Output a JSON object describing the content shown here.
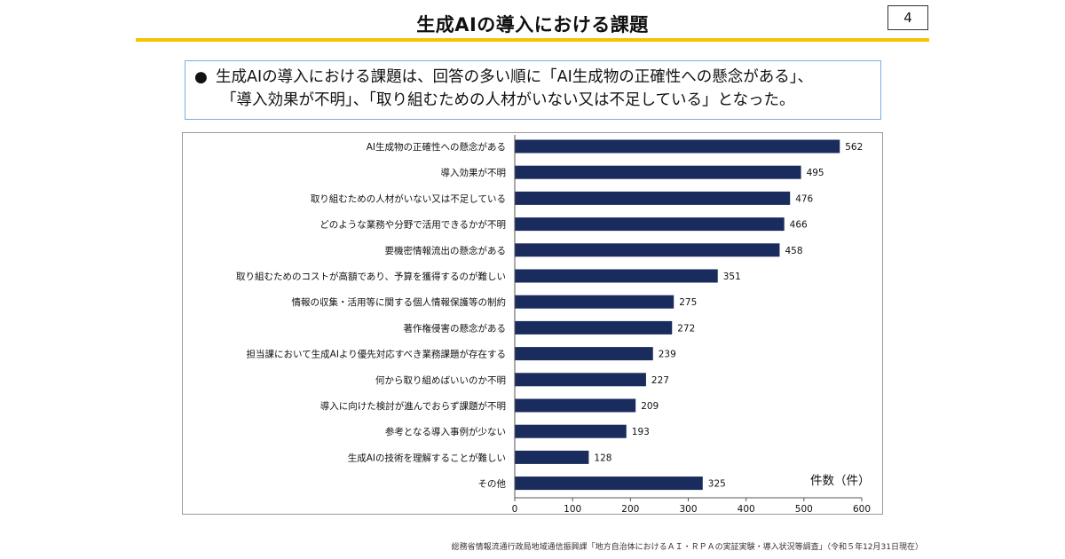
{
  "slide": {
    "title": "生成AIの導入における課題",
    "page_number": "4",
    "summary_bullet": "●",
    "summary_line1": "生成AIの導入における課題は、回答の多い順に「AI生成物の正確性への懸念がある」、",
    "summary_line2": "「導入効果が不明」、「取り組むための人材がいない又は不足している」となった。",
    "source_note": "総務省情報流通行政局地域通信振興課「地方自治体におけるＡＩ・ＲＰＡの実証実験・導入状況等調査」（令和５年12月31日現在）",
    "colors": {
      "accent_rule": "#f5c400",
      "box_border": "#7aaede",
      "bar": "#1a2b5e"
    }
  },
  "chart_data": {
    "type": "bar",
    "orientation": "horizontal",
    "categories": [
      "AI生成物の正確性への懸念がある",
      "導入効果が不明",
      "取り組むための人材がいない又は不足している",
      "どのような業務や分野で活用できるかが不明",
      "要機密情報流出の懸念がある",
      "取り組むためのコストが高額であり、予算を獲得するのが難しい",
      "情報の収集・活用等に関する個人情報保護等の制約",
      "著作権侵害の懸念がある",
      "担当課において生成AIより優先対応すべき業務課題が存在する",
      "何から取り組めばいいのか不明",
      "導入に向けた検討が進んでおらず課題が不明",
      "参考となる導入事例が少ない",
      "生成AIの技術を理解することが難しい",
      "その他"
    ],
    "values": [
      562,
      495,
      476,
      466,
      458,
      351,
      275,
      272,
      239,
      227,
      209,
      193,
      128,
      325
    ],
    "xlabel": "件数（件）",
    "xlim": [
      0,
      600
    ],
    "xticks": [
      0,
      100,
      200,
      300,
      400,
      500,
      600
    ],
    "grid": false,
    "data_labels": true
  }
}
